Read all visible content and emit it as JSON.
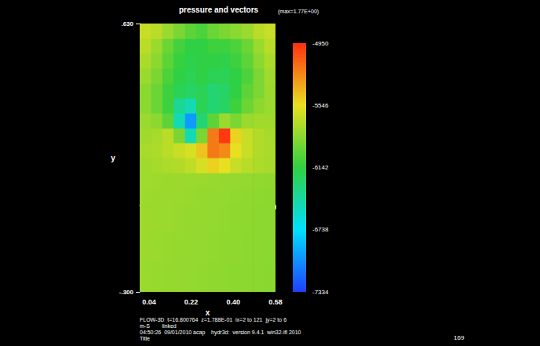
{
  "chart_data": {
    "type": "heatmap",
    "title": "pressure and vectors",
    "subtitle": "(max=1.77E+00)",
    "x_label": "x",
    "y_label": "y",
    "xlim": [
      0,
      0.58
    ],
    "xticks": [
      0.04,
      0.22,
      {
        "value": 0.4,
        "label": "0.40"
      },
      0.58
    ],
    "ylim": [
      -0.3,
      0.63
    ],
    "yticks": [
      {
        "value": -0.3,
        "label": "-.300"
      },
      {
        "value": 0.63,
        "label": ".630"
      }
    ],
    "grid": false,
    "x": [
      0.024,
      0.073,
      0.121,
      0.169,
      0.218,
      0.266,
      0.314,
      0.363,
      0.411,
      0.459,
      0.508,
      0.556
    ],
    "y": [
      -0.274,
      -0.222,
      -0.171,
      -0.119,
      -0.067,
      -0.016,
      0.036,
      0.088,
      0.139,
      0.191,
      0.243,
      0.294,
      0.346,
      0.398,
      0.449,
      0.501,
      0.553,
      0.604
    ],
    "pressure": [
      [
        -5800,
        -5805,
        -5810,
        -5815,
        -5820,
        -5825,
        -5830,
        -5835,
        -5840,
        -5845,
        -5850,
        -5855
      ],
      [
        -5800,
        -5805,
        -5810,
        -5815,
        -5820,
        -5825,
        -5830,
        -5835,
        -5840,
        -5845,
        -5850,
        -5855
      ],
      [
        -5795,
        -5800,
        -5805,
        -5810,
        -5815,
        -5820,
        -5825,
        -5830,
        -5835,
        -5840,
        -5845,
        -5850
      ],
      [
        -5795,
        -5800,
        -5805,
        -5810,
        -5815,
        -5820,
        -5825,
        -5830,
        -5835,
        -5840,
        -5845,
        -5850
      ],
      [
        -5790,
        -5795,
        -5800,
        -5805,
        -5810,
        -5815,
        -5820,
        -5825,
        -5830,
        -5835,
        -5840,
        -5845
      ],
      [
        -5790,
        -5795,
        -5800,
        -5805,
        -5810,
        -5815,
        -5820,
        -5825,
        -5830,
        -5835,
        -5840,
        -5845
      ],
      [
        -5785,
        -5790,
        -5795,
        -5800,
        -5805,
        -5810,
        -5815,
        -5820,
        -5825,
        -5830,
        -5835,
        -5840
      ],
      [
        -5780,
        -5785,
        -5790,
        -5795,
        -5800,
        -5800,
        -5805,
        -5810,
        -5815,
        -5820,
        -5825,
        -5830
      ],
      [
        -5780,
        -5760,
        -5740,
        -5720,
        -5680,
        -5600,
        -5500,
        -5550,
        -5650,
        -5700,
        -5740,
        -5760
      ],
      [
        -5760,
        -5740,
        -5700,
        -5650,
        -5600,
        -5450,
        -5200,
        -5250,
        -5550,
        -5650,
        -5720,
        -5750
      ],
      [
        -5780,
        -5760,
        -5700,
        -5900,
        -6500,
        -5900,
        -5200,
        -4980,
        -5500,
        -5650,
        -5720,
        -5760
      ],
      [
        -5800,
        -5850,
        -6000,
        -6500,
        -7000,
        -6300,
        -6000,
        -5800,
        -5900,
        -5800,
        -5780,
        -5780
      ],
      [
        -5850,
        -5950,
        -6100,
        -6400,
        -6500,
        -6200,
        -6300,
        -6250,
        -6100,
        -5950,
        -5850,
        -5800
      ],
      [
        -5850,
        -5950,
        -6100,
        -6200,
        -6250,
        -6200,
        -6300,
        -6250,
        -6150,
        -6000,
        -5900,
        -5800
      ],
      [
        -5800,
        -5900,
        -6050,
        -6150,
        -6200,
        -6150,
        -6200,
        -6200,
        -6150,
        -6050,
        -5900,
        -5780
      ],
      [
        -5750,
        -5850,
        -6000,
        -6120,
        -6180,
        -6150,
        -6150,
        -6170,
        -6100,
        -6000,
        -5850,
        -5750
      ],
      [
        -5700,
        -5800,
        -5950,
        -6080,
        -6150,
        -6150,
        -6100,
        -6100,
        -6050,
        -5950,
        -5800,
        -5700
      ],
      [
        -5650,
        -5700,
        -5800,
        -5900,
        -6000,
        -6050,
        -5950,
        -5900,
        -5850,
        -5800,
        -5700,
        -5650
      ]
    ],
    "colorbar": {
      "range": [
        -7334,
        -4950
      ],
      "ticks": [
        -4950,
        -5546,
        -6142,
        -6738,
        -7334
      ]
    },
    "annotations": [
      "FLOW-3D  t=16.800764  z=1.788E-01  ix=2 to 121  jy=2 to 6",
      "m-S        linked",
      "04:50:26  09/01/2010 acap    hydr3d:  version 9.4.1  win32-ifl 2010",
      "Title",
      "169"
    ]
  }
}
